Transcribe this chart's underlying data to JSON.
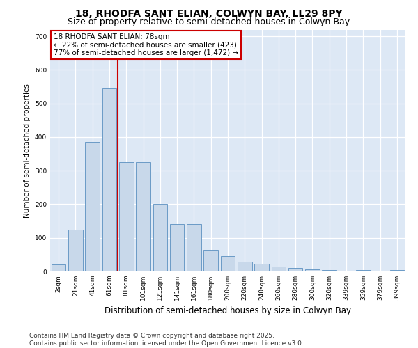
{
  "title": "18, RHODFA SANT ELIAN, COLWYN BAY, LL29 8PY",
  "subtitle": "Size of property relative to semi-detached houses in Colwyn Bay",
  "xlabel": "Distribution of semi-detached houses by size in Colwyn Bay",
  "ylabel": "Number of semi-detached properties",
  "categories": [
    "2sqm",
    "21sqm",
    "41sqm",
    "61sqm",
    "81sqm",
    "101sqm",
    "121sqm",
    "141sqm",
    "161sqm",
    "180sqm",
    "200sqm",
    "220sqm",
    "240sqm",
    "260sqm",
    "280sqm",
    "300sqm",
    "320sqm",
    "339sqm",
    "359sqm",
    "379sqm",
    "399sqm"
  ],
  "values": [
    20,
    125,
    385,
    545,
    325,
    325,
    200,
    140,
    140,
    65,
    45,
    30,
    22,
    15,
    10,
    7,
    4,
    0,
    4,
    0,
    4
  ],
  "vline_x": 3.5,
  "vline_color": "#cc0000",
  "annotation_line1": "18 RHODFA SANT ELIAN: 78sqm",
  "annotation_line2": "← 22% of semi-detached houses are smaller (423)",
  "annotation_line3": "77% of semi-detached houses are larger (1,472) →",
  "annotation_box_color": "#ffffff",
  "annotation_box_edge": "#cc0000",
  "bar_color": "#c8d8ea",
  "bar_edge_color": "#5a8fc0",
  "ylim": [
    0,
    720
  ],
  "yticks": [
    0,
    100,
    200,
    300,
    400,
    500,
    600,
    700
  ],
  "background_color": "#ffffff",
  "plot_bg_color": "#dde8f5",
  "grid_color": "#ffffff",
  "footer_line1": "Contains HM Land Registry data © Crown copyright and database right 2025.",
  "footer_line2": "Contains public sector information licensed under the Open Government Licence v3.0.",
  "title_fontsize": 10,
  "subtitle_fontsize": 9,
  "xlabel_fontsize": 8.5,
  "ylabel_fontsize": 7.5,
  "tick_fontsize": 6.5,
  "annotation_fontsize": 7.5,
  "footer_fontsize": 6.5
}
